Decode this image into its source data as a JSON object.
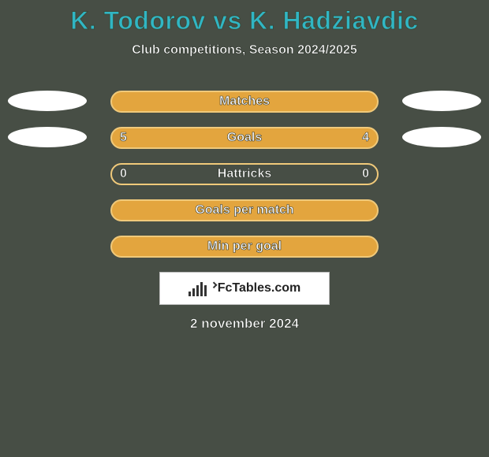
{
  "background_color": "#474e45",
  "text_fill_color": "#ffffff",
  "text_stroke_color": "#3a4a3a",
  "title": "K. Todorov vs K. Hadziavdic",
  "title_color": "#30b6c4",
  "title_fontsize": 32,
  "subtitle": "Club competitions, Season 2024/2025",
  "subtitle_fontsize": 16,
  "pill_width": 340,
  "pill_height": 28,
  "pill_border_radius": 14,
  "side_ellipse": {
    "width": 100,
    "height": 26,
    "fill": "#ffffff"
  },
  "rows": [
    {
      "label": "Matches",
      "left": "",
      "right": "",
      "fill": "#e3a53e",
      "border": "#f0c97a",
      "show_sides": true
    },
    {
      "label": "Goals",
      "left": "5",
      "right": "4",
      "fill": "#e3a53e",
      "border": "#f0c97a",
      "show_sides": true
    },
    {
      "label": "Hattricks",
      "left": "0",
      "right": "0",
      "fill": null,
      "border": "#f0c97a",
      "show_sides": false
    },
    {
      "label": "Goals per match",
      "left": "",
      "right": "",
      "fill": "#e3a53e",
      "border": "#f0c97a",
      "show_sides": false
    },
    {
      "label": "Min per goal",
      "left": "",
      "right": "",
      "fill": "#e3a53e",
      "border": "#f0c97a",
      "show_sides": false
    }
  ],
  "logo": {
    "text": "FcTables.com",
    "box_bg": "#ffffff",
    "box_border": "#bbbbbb",
    "bars": [
      6,
      10,
      14,
      18,
      14
    ]
  },
  "date": "2 november 2024"
}
